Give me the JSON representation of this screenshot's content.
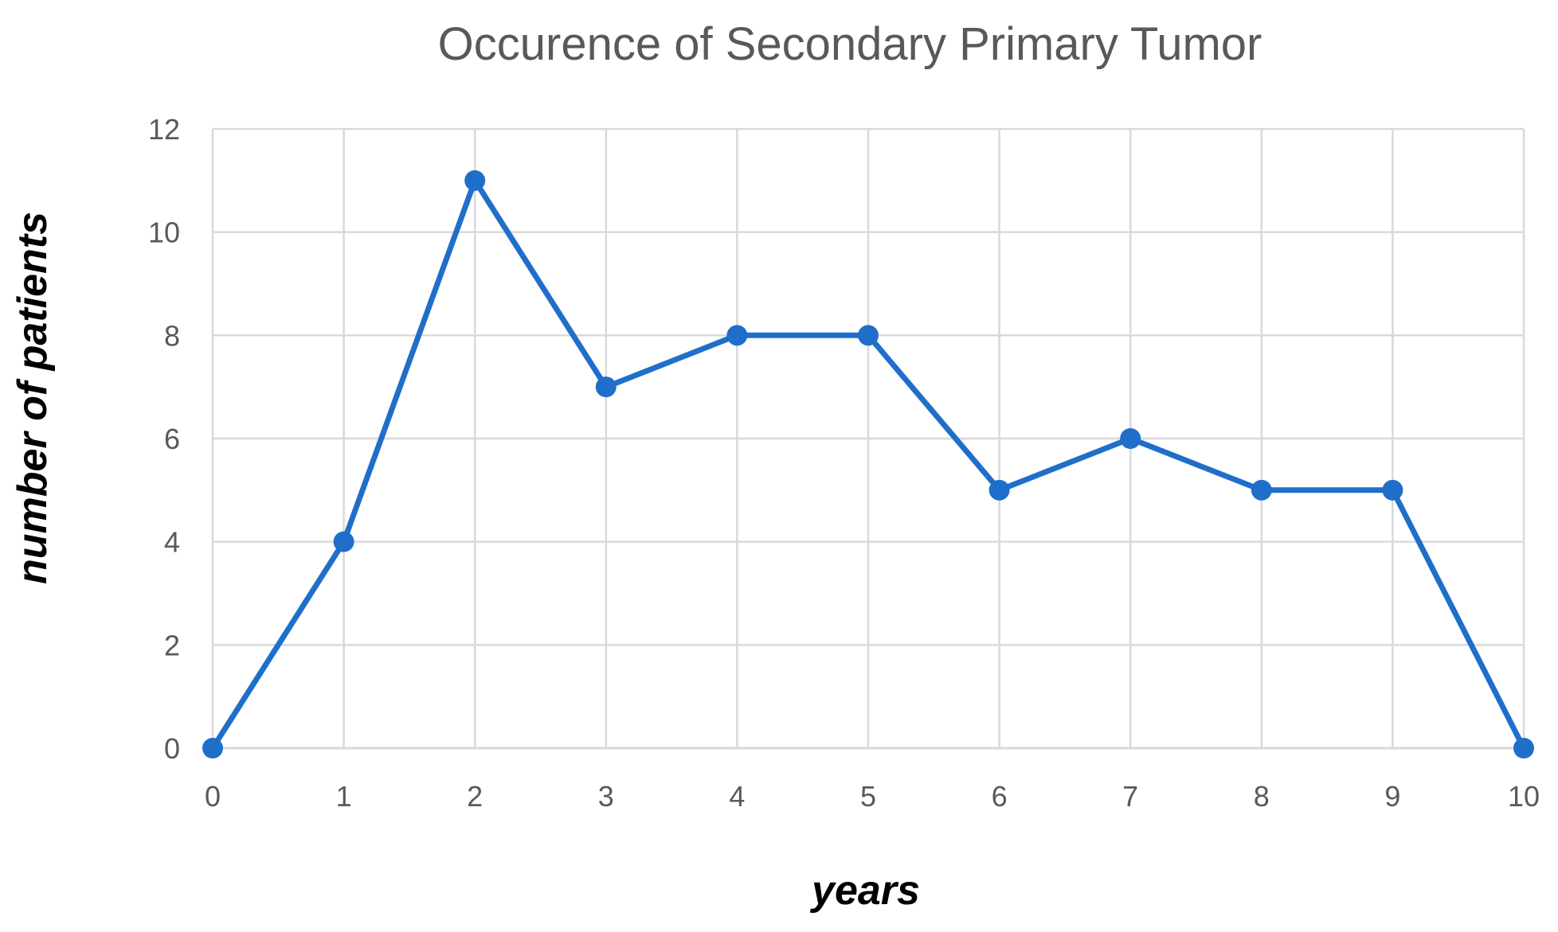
{
  "chart_data": {
    "type": "line",
    "title": "Occurence of Secondary Primary Tumor",
    "xlabel": "years",
    "ylabel": "number of patients",
    "x": [
      0,
      1,
      2,
      3,
      4,
      5,
      6,
      7,
      8,
      9,
      10
    ],
    "x_ticks": [
      "0",
      "1",
      "2",
      "3",
      "4",
      "5",
      "6",
      "7",
      "8",
      "9",
      "10"
    ],
    "y_ticks": [
      "0",
      "2",
      "4",
      "6",
      "8",
      "10",
      "12"
    ],
    "xlim": [
      0,
      10
    ],
    "ylim": [
      0,
      12
    ],
    "grid": true,
    "legend": "none",
    "series": [
      {
        "values": [
          0,
          4,
          11,
          7,
          8,
          8,
          5,
          6,
          5,
          5,
          0
        ],
        "color": "#1f6fca"
      }
    ]
  }
}
